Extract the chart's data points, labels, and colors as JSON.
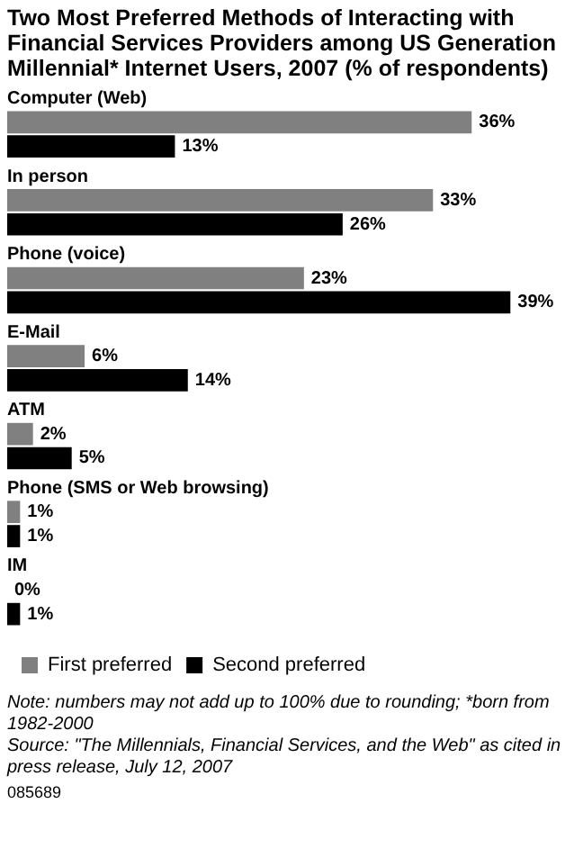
{
  "chart_data": {
    "type": "bar",
    "orientation": "horizontal",
    "title": "Two Most Preferred Methods of Interacting with Financial Services Providers  among US Generation Millennial* Internet Users, 2007 (% of respondents)",
    "categories": [
      "Computer (Web)",
      "In person",
      "Phone (voice)",
      "E-Mail",
      "ATM",
      "Phone (SMS or Web browsing)",
      "IM"
    ],
    "series": [
      {
        "name": "First preferred",
        "color": "#808080",
        "values": [
          36,
          33,
          23,
          6,
          2,
          1,
          0
        ],
        "value_labels": [
          "36%",
          "33%",
          "23%",
          "6%",
          "2%",
          "1%",
          "0%"
        ]
      },
      {
        "name": "Second preferred",
        "color": "#000000",
        "values": [
          13,
          26,
          39,
          14,
          5,
          1,
          1
        ],
        "value_labels": [
          "13%",
          "26%",
          "39%",
          "14%",
          "5%",
          "1%",
          "1%"
        ]
      }
    ],
    "legend": "bottom",
    "annotations": [
      "Note: numbers may not add up to 100% due to rounding; *born from 1982-2000",
      "Source: \"The Millennials, Financial Services, and the Web\" as cited in press release, July 12, 2007",
      "085689"
    ]
  }
}
